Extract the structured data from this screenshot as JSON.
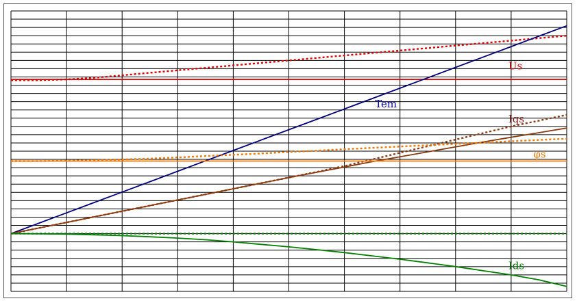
{
  "chart_data": {
    "type": "line",
    "grid": true,
    "legend": "inline labels near curves",
    "xlim": [
      0,
      10
    ],
    "ylim": [
      -3.5,
      13.5
    ],
    "x": [
      0,
      0.5,
      1,
      1.5,
      2,
      2.5,
      3,
      3.5,
      4,
      4.5,
      5,
      5.5,
      6,
      6.5,
      7,
      7.5,
      8,
      8.5,
      9,
      9.5,
      10
    ],
    "series": [
      {
        "name": "Us",
        "color": "#e00000",
        "style": "solid",
        "values": [
          9.35,
          9.35,
          9.35,
          9.35,
          9.35,
          9.35,
          9.35,
          9.35,
          9.35,
          9.35,
          9.35,
          9.35,
          9.35,
          9.35,
          9.35,
          9.35,
          9.35,
          9.35,
          9.35,
          9.35,
          9.35
        ]
      },
      {
        "name": "",
        "color": "#e00000",
        "style": "dotted",
        "values": [
          9.3,
          9.3,
          9.35,
          9.45,
          9.6,
          9.75,
          9.9,
          10.05,
          10.2,
          10.35,
          10.5,
          10.65,
          10.8,
          10.95,
          11.1,
          11.25,
          11.4,
          11.55,
          11.7,
          11.85,
          12.0
        ]
      },
      {
        "name": "Tem",
        "color": "#000080",
        "style": "solid",
        "values": [
          0.0,
          0.63,
          1.26,
          1.89,
          2.52,
          3.15,
          3.78,
          4.41,
          5.04,
          5.67,
          6.3,
          6.93,
          7.56,
          8.19,
          8.82,
          9.45,
          10.08,
          10.71,
          11.34,
          11.97,
          12.6
        ]
      },
      {
        "name": "Iqs",
        "color": "#8b3a0f",
        "style": "solid",
        "values": [
          0.0,
          0.34,
          0.68,
          1.02,
          1.36,
          1.7,
          2.04,
          2.38,
          2.72,
          3.06,
          3.4,
          3.72,
          4.04,
          4.36,
          4.66,
          4.96,
          5.26,
          5.56,
          5.84,
          6.12,
          6.4
        ]
      },
      {
        "name": "",
        "color": "#8b3a0f",
        "style": "dotted",
        "values": [
          0.0,
          0.34,
          0.68,
          1.02,
          1.36,
          1.7,
          2.04,
          2.38,
          2.72,
          3.06,
          3.4,
          3.74,
          4.1,
          4.5,
          4.9,
          5.3,
          5.7,
          6.1,
          6.5,
          6.85,
          7.2
        ]
      },
      {
        "name": "φs",
        "color": "#f07800",
        "style": "solid",
        "values": [
          4.4,
          4.4,
          4.4,
          4.4,
          4.4,
          4.4,
          4.4,
          4.4,
          4.4,
          4.4,
          4.4,
          4.4,
          4.4,
          4.4,
          4.4,
          4.4,
          4.4,
          4.4,
          4.4,
          4.4,
          4.4
        ]
      },
      {
        "name": "",
        "color": "#f07800",
        "style": "dotted",
        "values": [
          4.4,
          4.4,
          4.42,
          4.45,
          4.5,
          4.55,
          4.62,
          4.7,
          4.78,
          4.86,
          4.95,
          5.03,
          5.12,
          5.2,
          5.28,
          5.36,
          5.44,
          5.52,
          5.6,
          5.68,
          5.75
        ]
      },
      {
        "name": "Ids",
        "color": "#008000",
        "style": "solid",
        "values": [
          0.0,
          -0.01,
          -0.03,
          -0.07,
          -0.12,
          -0.19,
          -0.27,
          -0.37,
          -0.5,
          -0.65,
          -0.8,
          -0.97,
          -1.15,
          -1.35,
          -1.55,
          -1.77,
          -2.0,
          -2.25,
          -2.5,
          -2.8,
          -3.2
        ]
      },
      {
        "name": "",
        "color": "#008000",
        "style": "dotted",
        "values": [
          0,
          0,
          0,
          0,
          0,
          0,
          0,
          0,
          0,
          0,
          0,
          0,
          0,
          0,
          0,
          0,
          0,
          0,
          0,
          0,
          0
        ]
      }
    ],
    "annotations": [
      {
        "text": "Us",
        "x": 8.95,
        "y": 9.95,
        "color": "#e00000"
      },
      {
        "text": "Tem",
        "x": 6.55,
        "y": 7.65,
        "color": "#0000c0"
      },
      {
        "text": "Iqs",
        "x": 8.95,
        "y": 6.75,
        "color": "#8b1a1a"
      },
      {
        "text": "φs",
        "x": 9.4,
        "y": 4.6,
        "color": "#f07800"
      },
      {
        "text": "Ids",
        "x": 8.95,
        "y": -2.15,
        "color": "#008000"
      }
    ]
  }
}
